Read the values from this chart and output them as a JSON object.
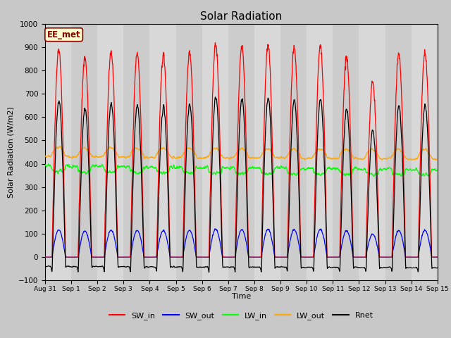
{
  "title": "Solar Radiation",
  "xlabel": "Time",
  "ylabel": "Solar Radiation (W/m2)",
  "ylim": [
    -100,
    1000
  ],
  "annotation": "EE_met",
  "legend": [
    "SW_in",
    "SW_out",
    "LW_in",
    "LW_out",
    "Rnet"
  ],
  "colors": {
    "SW_in": "#ff0000",
    "SW_out": "#0000ff",
    "LW_in": "#00ff00",
    "LW_out": "#ffa500",
    "Rnet": "#000000"
  },
  "xtick_labels": [
    "Aug 31",
    "Sep 1",
    "Sep 2",
    "Sep 3",
    "Sep 4",
    "Sep 5",
    "Sep 6",
    "Sep 7",
    "Sep 8",
    "Sep 9",
    "Sep 10",
    "Sep 11",
    "Sep 12",
    "Sep 13",
    "Sep 14",
    "Sep 15"
  ],
  "n_days": 15,
  "pts_per_day": 96,
  "fig_bg": "#c8c8c8",
  "ax_bg": "#dcdcdc"
}
